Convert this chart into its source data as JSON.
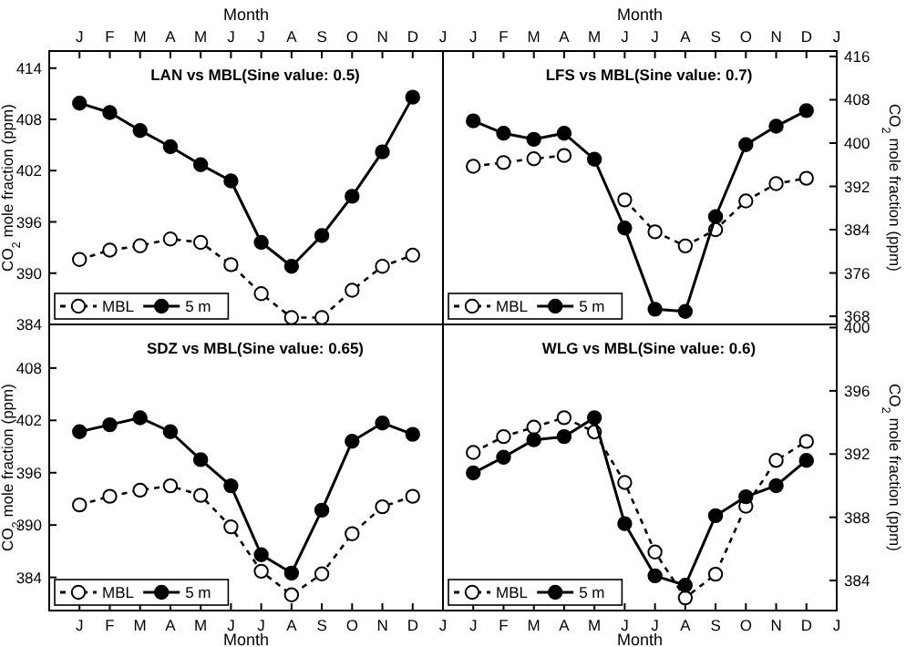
{
  "chart_data": [
    {
      "type": "line",
      "title": "LAN vs MBL(Sine value: 0.5)",
      "xlabel": "Month",
      "ylabel": "CO$_{2}$ mole fraction (ppm)",
      "categories": [
        "J",
        "F",
        "M",
        "A",
        "M",
        "J",
        "J",
        "A",
        "S",
        "O",
        "N",
        "D"
      ],
      "ylim": [
        384,
        416
      ],
      "yticks": [
        384,
        390,
        396,
        402,
        408,
        414
      ],
      "legend": "bottom left",
      "marker": "circle",
      "series": [
        {
          "name": "MBL",
          "color": "#000000",
          "line_style": "dashed",
          "values": [
            391.6,
            392.7,
            393.2,
            394.0,
            393.6,
            391.0,
            387.6,
            384.8,
            384.8,
            388.0,
            390.8,
            392.1
          ]
        },
        {
          "name": "5 m",
          "color": "#000000",
          "line_style": "solid",
          "values": [
            409.9,
            408.8,
            406.7,
            404.8,
            402.7,
            400.8,
            393.6,
            390.8,
            394.4,
            399.0,
            404.2,
            410.6
          ]
        }
      ]
    },
    {
      "type": "line",
      "title": "LFS vs MBL(Sine value: 0.7)",
      "xlabel": "Month",
      "y2label": "CO$_{2}$ mole fraction (ppm)",
      "categories": [
        "J",
        "J",
        "F",
        "M",
        "A",
        "M",
        "J",
        "J",
        "A",
        "S",
        "O",
        "N",
        "D",
        "J"
      ],
      "y2lim": [
        366.5,
        417
      ],
      "y2ticks": [
        368,
        376,
        384,
        392,
        400,
        408,
        416
      ],
      "legend": "bottom left",
      "marker": "circle",
      "series": [
        {
          "name": "MBL",
          "color": "#000000",
          "line_style": "dashed",
          "axis": "y2",
          "values": [
            null,
            395.7,
            396.4,
            397.1,
            397.7,
            null,
            389.5,
            383.6,
            381.0,
            384.0,
            389.3,
            392.5,
            393.5,
            null
          ]
        },
        {
          "name": "5 m",
          "color": "#000000",
          "line_style": "solid",
          "axis": "y2",
          "values": [
            null,
            404.1,
            401.8,
            400.7,
            401.8,
            397.0,
            384.3,
            369.3,
            368.9,
            386.4,
            399.7,
            403.1,
            406.0,
            null
          ]
        }
      ]
    },
    {
      "type": "line",
      "title": "SDZ vs MBL(Sine value: 0.65)",
      "xlabel": "Month",
      "ylabel": "CO$_{2}$ mole fraction (ppm)",
      "categories": [
        "J",
        "F",
        "M",
        "A",
        "M",
        "J",
        "J",
        "A",
        "S",
        "O",
        "N",
        "D"
      ],
      "ylim": [
        380.2,
        413
      ],
      "yticks": [
        384,
        390,
        396,
        402,
        408
      ],
      "legend": "bottom left",
      "marker": "circle",
      "series": [
        {
          "name": "MBL",
          "color": "#000000",
          "line_style": "dashed",
          "values": [
            392.3,
            393.3,
            394.0,
            394.5,
            393.4,
            389.8,
            384.7,
            382.0,
            384.4,
            389.0,
            392.1,
            393.3
          ]
        },
        {
          "name": "5 m",
          "color": "#000000",
          "line_style": "solid",
          "values": [
            400.7,
            401.5,
            402.3,
            400.7,
            397.5,
            394.5,
            386.6,
            384.5,
            391.7,
            399.6,
            401.7,
            400.4
          ]
        }
      ]
    },
    {
      "type": "line",
      "title": "WLG vs MBL(Sine value: 0.6)",
      "xlabel": "Month",
      "y2label": "CO$_{2}$ mole fraction (ppm)",
      "categories": [
        "J",
        "J",
        "F",
        "M",
        "A",
        "M",
        "J",
        "J",
        "A",
        "S",
        "O",
        "N",
        "D",
        "J"
      ],
      "y2lim": [
        382.1,
        400.2
      ],
      "y2ticks": [
        384,
        388,
        392,
        396,
        400
      ],
      "legend": "bottom left",
      "marker": "circle",
      "series": [
        {
          "name": "MBL",
          "color": "#000000",
          "line_style": "dashed",
          "axis": "y2",
          "values": [
            null,
            392.1,
            393.1,
            393.7,
            394.3,
            393.4,
            390.2,
            385.8,
            382.9,
            384.4,
            388.7,
            391.6,
            392.8,
            null
          ]
        },
        {
          "name": "5 m",
          "color": "#000000",
          "line_style": "solid",
          "axis": "y2",
          "values": [
            null,
            390.8,
            391.8,
            392.9,
            393.1,
            394.3,
            387.6,
            384.3,
            383.7,
            388.1,
            389.3,
            390.0,
            391.6,
            null
          ]
        }
      ]
    }
  ]
}
